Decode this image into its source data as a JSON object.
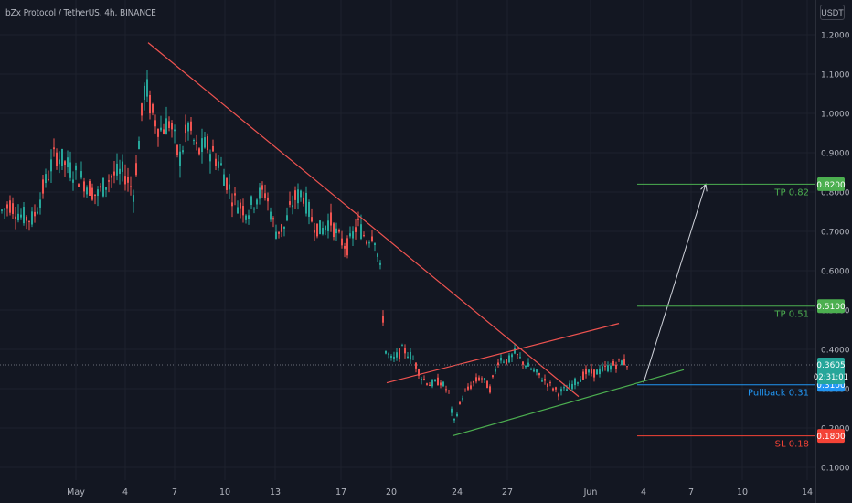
{
  "header": {
    "title": "bZx Protocol / TetherUS, 4h, BINANCE",
    "currency": "USDT"
  },
  "colors": {
    "background": "#131722",
    "up": "#26a69a",
    "down": "#ef5350",
    "text": "#b2b5be",
    "grid": "#1e222d",
    "tp": "#4caf50",
    "pullback": "#2196f3",
    "sl": "#f44336",
    "arrow": "#d1d4dc"
  },
  "chart_data": {
    "type": "candlestick",
    "symbol": "bZx Protocol / TetherUS",
    "interval": "4h",
    "exchange": "BINANCE",
    "price_axis_ticks": [
      "1.2000",
      "1.1000",
      "1.0000",
      "0.9000",
      "0.8000",
      "0.7000",
      "0.6000",
      "0.5000",
      "0.4000",
      "0.3000",
      "0.2000",
      "0.1000"
    ],
    "time_axis_ticks": [
      "May",
      "4",
      "7",
      "10",
      "13",
      "17",
      "20",
      "24",
      "27",
      "Jun",
      "4",
      "7",
      "10",
      "14"
    ],
    "last_price": "0.3605",
    "countdown": "02:31:01",
    "price_path": [
      [
        0,
        0.75
      ],
      [
        10,
        0.77
      ],
      [
        22,
        0.74
      ],
      [
        35,
        0.73
      ],
      [
        48,
        0.82
      ],
      [
        60,
        0.9
      ],
      [
        75,
        0.86
      ],
      [
        90,
        0.83
      ],
      [
        105,
        0.79
      ],
      [
        120,
        0.84
      ],
      [
        135,
        0.85
      ],
      [
        145,
        0.8
      ],
      [
        152,
        0.95
      ],
      [
        158,
        1.08
      ],
      [
        165,
        1.0
      ],
      [
        175,
        0.96
      ],
      [
        185,
        0.98
      ],
      [
        195,
        0.88
      ],
      [
        205,
        0.97
      ],
      [
        215,
        0.9
      ],
      [
        225,
        0.92
      ],
      [
        240,
        0.87
      ],
      [
        255,
        0.78
      ],
      [
        270,
        0.75
      ],
      [
        280,
        0.79
      ],
      [
        290,
        0.8
      ],
      [
        300,
        0.7
      ],
      [
        310,
        0.71
      ],
      [
        320,
        0.78
      ],
      [
        330,
        0.8
      ],
      [
        340,
        0.73
      ],
      [
        350,
        0.7
      ],
      [
        360,
        0.73
      ],
      [
        370,
        0.68
      ],
      [
        380,
        0.66
      ],
      [
        390,
        0.72
      ],
      [
        400,
        0.68
      ],
      [
        408,
        0.7
      ],
      [
        415,
        0.6
      ],
      [
        420,
        0.4
      ],
      [
        428,
        0.37
      ],
      [
        440,
        0.4
      ],
      [
        450,
        0.38
      ],
      [
        460,
        0.33
      ],
      [
        470,
        0.31
      ],
      [
        480,
        0.32
      ],
      [
        490,
        0.29
      ],
      [
        495,
        0.21
      ],
      [
        505,
        0.28
      ],
      [
        515,
        0.31
      ],
      [
        525,
        0.33
      ],
      [
        535,
        0.3
      ],
      [
        545,
        0.38
      ],
      [
        555,
        0.37
      ],
      [
        562,
        0.39
      ],
      [
        570,
        0.37
      ],
      [
        580,
        0.35
      ],
      [
        590,
        0.33
      ],
      [
        600,
        0.31
      ],
      [
        610,
        0.29
      ],
      [
        620,
        0.3
      ],
      [
        630,
        0.32
      ],
      [
        640,
        0.34
      ],
      [
        650,
        0.34
      ],
      [
        660,
        0.35
      ],
      [
        670,
        0.36
      ],
      [
        680,
        0.37
      ],
      [
        687,
        0.36
      ]
    ],
    "drawings": {
      "downtrend_line": [
        [
          162,
          1.18
        ],
        [
          633,
          0.28
        ]
      ],
      "channel_upper": [
        [
          423,
          0.315
        ],
        [
          677,
          0.466
        ]
      ],
      "channel_lower": [
        [
          495,
          0.18
        ],
        [
          748,
          0.348
        ]
      ],
      "target_arrow": [
        [
          704,
          0.315
        ],
        [
          772,
          0.82
        ]
      ]
    },
    "levels": [
      {
        "label": "TP 0.82",
        "price": 0.82,
        "price_label": "0.8200",
        "color": "#4caf50"
      },
      {
        "label": "TP 0.51",
        "price": 0.51,
        "price_label": "0.5100",
        "color": "#4caf50"
      },
      {
        "label": "Pullback 0.31",
        "price": 0.31,
        "price_label": "0.3100",
        "color": "#2196f3"
      },
      {
        "label": "SL 0.18",
        "price": 0.18,
        "price_label": "0.1800",
        "color": "#f44336"
      }
    ]
  }
}
